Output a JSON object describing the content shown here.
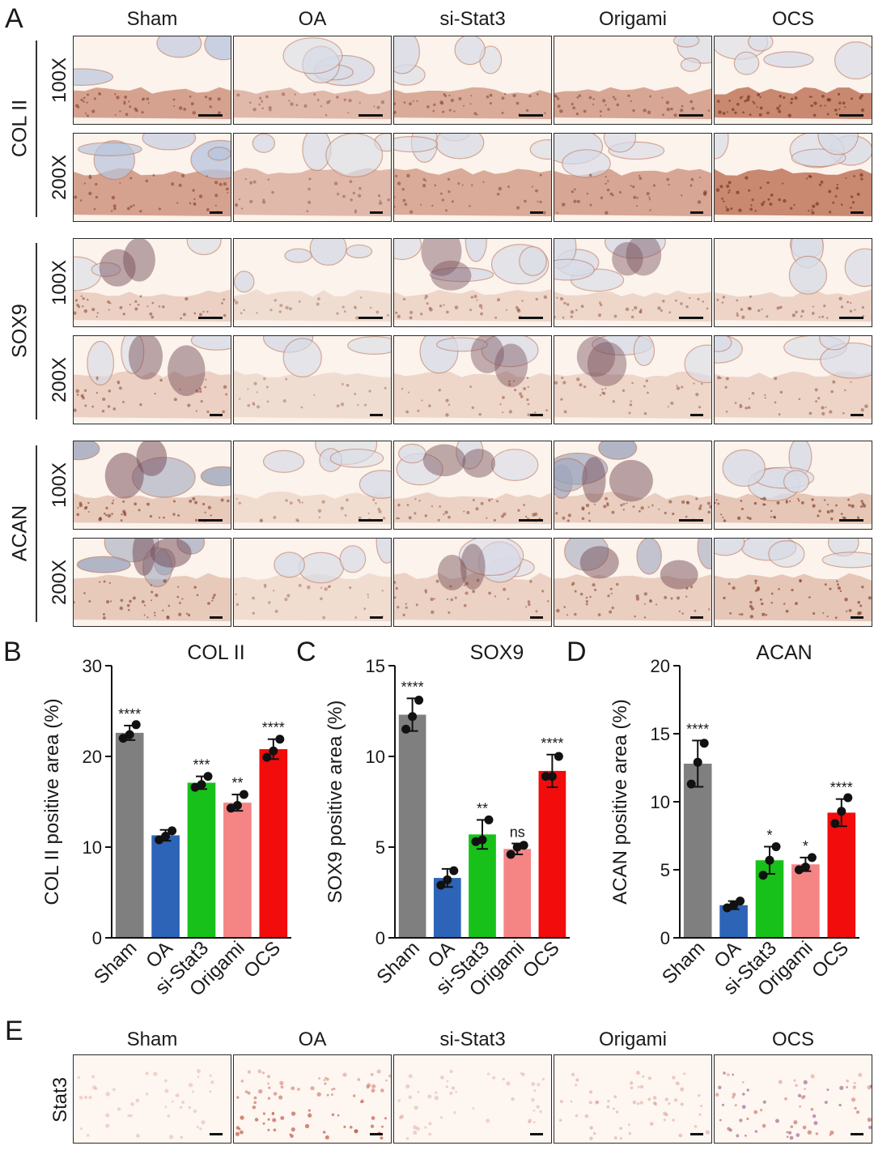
{
  "panels": {
    "A": "A",
    "B": "B",
    "C": "C",
    "D": "D",
    "E": "E"
  },
  "groups": [
    "Sham",
    "OA",
    "si-Stat3",
    "Origami",
    "OCS"
  ],
  "magnifications": [
    "100X",
    "200X"
  ],
  "stain_rows": [
    "COL II",
    "SOX9",
    "ACAN"
  ],
  "panel_e_stain": "Stat3",
  "colors": {
    "Sham": "#7f7f7f",
    "OA": "#2e64b7",
    "si-Stat3": "#17c11a",
    "Origami": "#f58585",
    "OCS": "#f20c0c"
  },
  "chart_data": [
    {
      "type": "bar",
      "panel": "B",
      "title": "COL II",
      "ylabel": "COL II positive area (%)",
      "xlabel": "",
      "categories": [
        "Sham",
        "OA",
        "si-Stat3",
        "Origami",
        "OCS"
      ],
      "values": [
        22.6,
        11.3,
        17.1,
        14.9,
        20.8
      ],
      "error": [
        0.8,
        0.6,
        0.7,
        0.9,
        1.1
      ],
      "points": [
        [
          22.0,
          22.4,
          23.5
        ],
        [
          10.8,
          11.2,
          11.8
        ],
        [
          16.6,
          16.9,
          17.8
        ],
        [
          14.3,
          14.6,
          15.8
        ],
        [
          19.9,
          20.6,
          21.9
        ]
      ],
      "significance": [
        "****",
        "",
        "***",
        "**",
        "****"
      ],
      "ylim": [
        0,
        30
      ],
      "yticks": [
        0,
        10,
        20,
        30
      ],
      "ytick_labels": [
        "0",
        "10",
        "20",
        "30"
      ]
    },
    {
      "type": "bar",
      "panel": "C",
      "title": "SOX9",
      "ylabel": "SOX9 positive area (%)",
      "xlabel": "",
      "categories": [
        "Sham",
        "OA",
        "si-Stat3",
        "Origami",
        "OCS"
      ],
      "values": [
        12.3,
        3.3,
        5.7,
        4.9,
        9.2
      ],
      "error": [
        0.9,
        0.5,
        0.8,
        0.3,
        0.9
      ],
      "points": [
        [
          11.5,
          12.2,
          13.1
        ],
        [
          2.9,
          3.2,
          3.7
        ],
        [
          5.3,
          5.4,
          6.5
        ],
        [
          4.6,
          5.0,
          5.1
        ],
        [
          8.9,
          8.9,
          10.0
        ]
      ],
      "significance": [
        "****",
        "",
        "**",
        "ns",
        "****"
      ],
      "ylim": [
        0,
        15
      ],
      "yticks": [
        0,
        5,
        10,
        15
      ],
      "ytick_labels": [
        "0",
        "5",
        "10",
        "15"
      ]
    },
    {
      "type": "bar",
      "panel": "D",
      "title": "ACAN",
      "ylabel": "ACAN positive area (%)",
      "xlabel": "",
      "categories": [
        "Sham",
        "OA",
        "si-Stat3",
        "Origami",
        "OCS"
      ],
      "values": [
        12.8,
        2.4,
        5.7,
        5.4,
        9.2
      ],
      "error": [
        1.7,
        0.3,
        1.0,
        0.5,
        1.0
      ],
      "points": [
        [
          11.3,
          12.9,
          14.3
        ],
        [
          2.2,
          2.4,
          2.7
        ],
        [
          4.6,
          5.7,
          6.7
        ],
        [
          5.0,
          5.2,
          5.9
        ],
        [
          8.4,
          9.3,
          10.3
        ]
      ],
      "significance": [
        "****",
        "",
        "*",
        "*",
        "****"
      ],
      "ylim": [
        0,
        20
      ],
      "yticks": [
        0,
        5,
        10,
        15,
        20
      ],
      "ytick_labels": [
        "0",
        "5",
        "10",
        "15",
        "20"
      ]
    }
  ]
}
